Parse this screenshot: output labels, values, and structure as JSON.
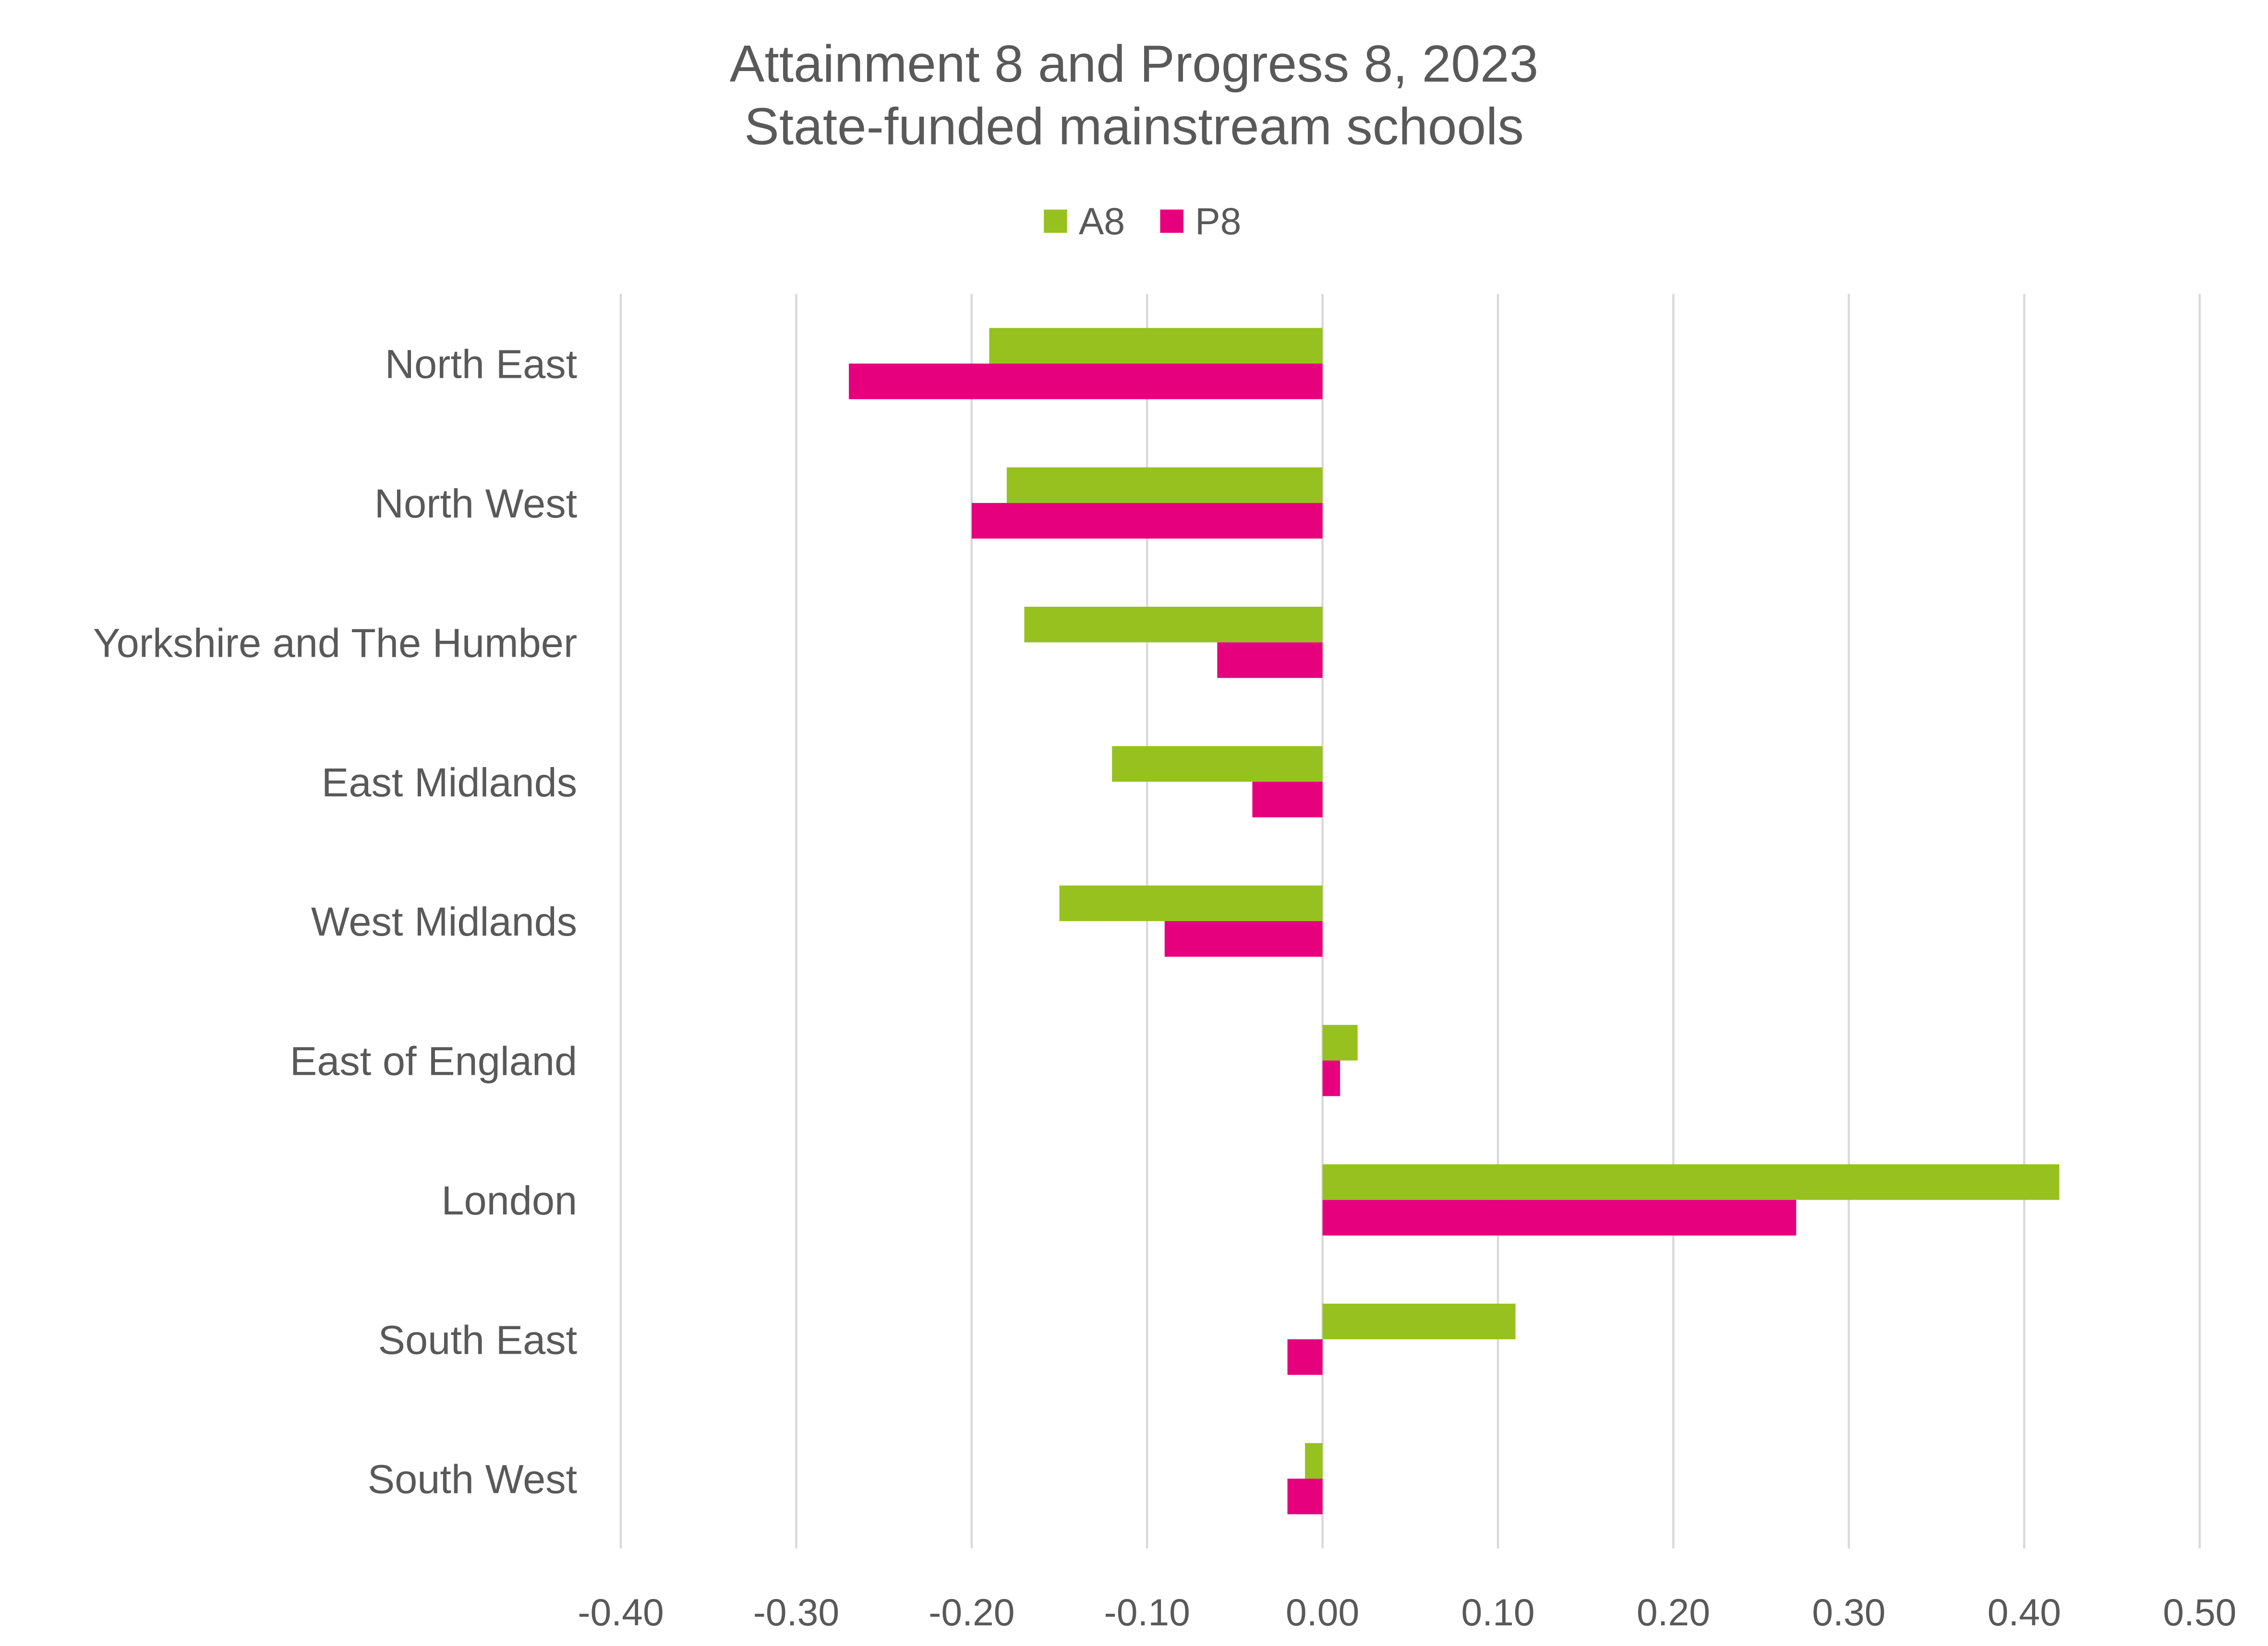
{
  "chart_data": {
    "type": "bar",
    "orientation": "horizontal",
    "title": "Attainment 8 and Progress 8, 2023",
    "subtitle": "State-funded mainstream schools",
    "categories": [
      "North East",
      "North West",
      "Yorkshire and The Humber",
      "East Midlands",
      "West Midlands",
      "East of England",
      "London",
      "South East",
      "South West"
    ],
    "series": [
      {
        "name": "A8",
        "color": "#97C11F",
        "values": [
          -0.19,
          -0.18,
          -0.17,
          -0.12,
          -0.15,
          0.02,
          0.42,
          0.11,
          -0.01
        ]
      },
      {
        "name": "P8",
        "color": "#E6007E",
        "values": [
          -0.27,
          -0.2,
          -0.06,
          -0.04,
          -0.09,
          0.01,
          0.27,
          -0.02,
          -0.02
        ]
      }
    ],
    "xlim": [
      -0.4,
      0.5
    ],
    "xticks": [
      "-0.40",
      "-0.30",
      "-0.20",
      "-0.10",
      "0.00",
      "0.10",
      "0.20",
      "0.30",
      "0.40",
      "0.50"
    ],
    "xlabel": "",
    "ylabel": "",
    "grid": "vertical",
    "legend_position": "top"
  }
}
